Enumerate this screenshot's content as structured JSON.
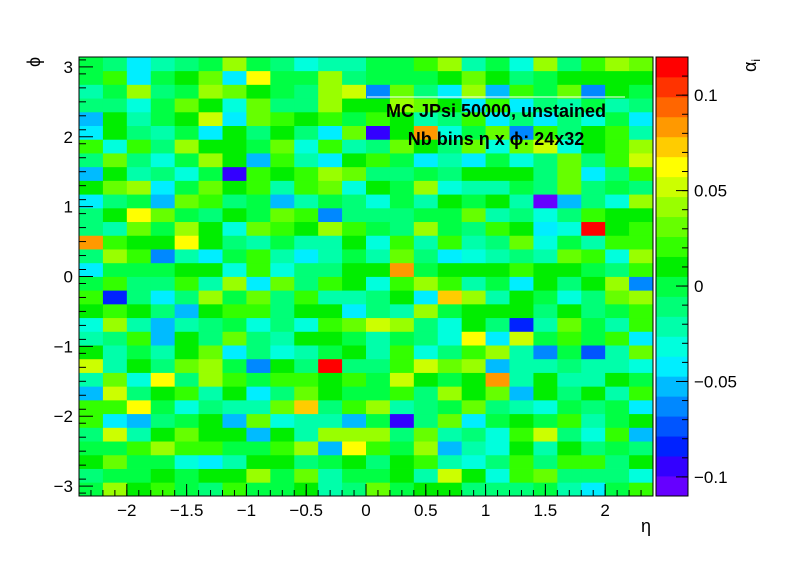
{
  "chart_data": {
    "type": "heatmap",
    "title": "",
    "annotation": {
      "line1": "MC JPsi 50000, unstained",
      "line2": "Nb bins  η x  ϕ: 24x32"
    },
    "xlabel": "η",
    "ylabel": "ϕ",
    "zlabel": "α",
    "zlabel_sub": "i",
    "xlim": [
      -2.4,
      2.4
    ],
    "ylim": [
      -3.1416,
      3.1416
    ],
    "zlim": [
      -0.11,
      0.12
    ],
    "nx": 24,
    "ny": 32,
    "x_ticks": [
      {
        "value": -2,
        "label": "−2"
      },
      {
        "value": -1.5,
        "label": "−1.5"
      },
      {
        "value": -1,
        "label": "−1"
      },
      {
        "value": -0.5,
        "label": "−0.5"
      },
      {
        "value": 0,
        "label": "0"
      },
      {
        "value": 0.5,
        "label": "0.5"
      },
      {
        "value": 1,
        "label": "1"
      },
      {
        "value": 1.5,
        "label": "1.5"
      },
      {
        "value": 2,
        "label": "2"
      }
    ],
    "y_ticks": [
      {
        "value": -3,
        "label": "−3"
      },
      {
        "value": -2,
        "label": "−2"
      },
      {
        "value": -1,
        "label": "−1"
      },
      {
        "value": 0,
        "label": "0"
      },
      {
        "value": 1,
        "label": "1"
      },
      {
        "value": 2,
        "label": "2"
      },
      {
        "value": 3,
        "label": "3"
      }
    ],
    "z_ticks": [
      {
        "value": 0.1,
        "label": "0.1"
      },
      {
        "value": 0.05,
        "label": "0.05"
      },
      {
        "value": 0,
        "label": "0"
      },
      {
        "value": -0.05,
        "label": "−0.05"
      },
      {
        "value": -0.1,
        "label": "−0.1"
      }
    ],
    "palette": [
      "#6600ff",
      "#3300ff",
      "#0022ff",
      "#0055ff",
      "#0088ff",
      "#00bbff",
      "#00eeff",
      "#00ffdd",
      "#00ffaa",
      "#00ff77",
      "#00ff44",
      "#00ee00",
      "#33ff00",
      "#66ff00",
      "#99ff00",
      "#ccff00",
      "#ffff00",
      "#ffcc00",
      "#ff9900",
      "#ff6600",
      "#ff3300",
      "#ff0000"
    ],
    "notable_bins": [
      {
        "eta": 1.9,
        "phi": 0.71,
        "value": 0.11
      },
      {
        "eta": -0.3,
        "phi": -1.28,
        "value": 0.11
      },
      {
        "eta": 0.0,
        "phi": 2.06,
        "value": -0.09
      },
      {
        "eta": 1.5,
        "phi": 1.08,
        "value": -0.105
      },
      {
        "eta": 0.3,
        "phi": -2.06,
        "value": -0.09
      },
      {
        "eta": -1.1,
        "phi": 1.47,
        "value": -0.09
      },
      {
        "eta": -2.3,
        "phi": 0.49,
        "value": 0.08
      },
      {
        "eta": 0.3,
        "phi": 0.1,
        "value": 0.08
      },
      {
        "eta": -2.1,
        "phi": -0.29,
        "value": -0.08
      },
      {
        "eta": 1.3,
        "phi": -0.69,
        "value": -0.08
      },
      {
        "eta": 1.1,
        "phi": -1.47,
        "value": 0.08
      },
      {
        "eta": 0.5,
        "phi": 2.06,
        "value": 0.08
      },
      {
        "eta": 0.7,
        "phi": -0.29,
        "value": 0.07
      },
      {
        "eta": -0.5,
        "phi": -1.88,
        "value": 0.07
      },
      {
        "eta": -0.1,
        "phi": -2.45,
        "value": 0.065
      }
    ]
  }
}
